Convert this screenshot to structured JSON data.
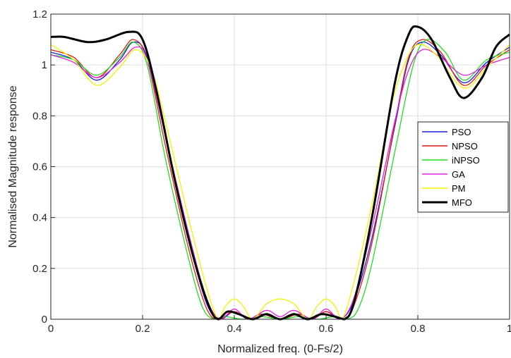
{
  "chart_data": {
    "type": "line",
    "title": "",
    "xlabel": "Normalized freq. (0-Fs/2)",
    "ylabel": "Normalised Magnitude response",
    "xlim": [
      0,
      1
    ],
    "ylim": [
      0,
      1.2
    ],
    "x_ticks": [
      0,
      0.2,
      0.4,
      0.6,
      0.8,
      1
    ],
    "x_tick_labels": [
      "0",
      "0.2",
      "0.4",
      "0.6",
      "0.8",
      "1"
    ],
    "y_ticks": [
      0,
      0.2,
      0.4,
      0.6,
      0.8,
      1,
      1.2
    ],
    "y_tick_labels": [
      "0",
      "0.2",
      "0.4",
      "0.6",
      "0.8",
      "1",
      "1.2"
    ],
    "grid": true,
    "legend_position": "right",
    "series": [
      {
        "name": "PSO",
        "color": "#1f1fdd",
        "points": [
          [
            0,
            1.05
          ],
          [
            0.05,
            1.02
          ],
          [
            0.1,
            0.94
          ],
          [
            0.15,
            1.02
          ],
          [
            0.18,
            1.09
          ],
          [
            0.21,
            1.03
          ],
          [
            0.25,
            0.72
          ],
          [
            0.3,
            0.32
          ],
          [
            0.34,
            0.06
          ],
          [
            0.37,
            0
          ],
          [
            0.4,
            0.03
          ],
          [
            0.43,
            0
          ],
          [
            0.46,
            0.02
          ],
          [
            0.5,
            0
          ],
          [
            0.54,
            0.02
          ],
          [
            0.57,
            0
          ],
          [
            0.6,
            0.03
          ],
          [
            0.63,
            0
          ],
          [
            0.66,
            0.07
          ],
          [
            0.7,
            0.32
          ],
          [
            0.75,
            0.76
          ],
          [
            0.78,
            1.02
          ],
          [
            0.81,
            1.09
          ],
          [
            0.85,
            1.04
          ],
          [
            0.9,
            0.93
          ],
          [
            0.95,
            1.01
          ],
          [
            1.0,
            1.07
          ]
        ]
      },
      {
        "name": "NPSO",
        "color": "#e31a1c",
        "points": [
          [
            0,
            1.06
          ],
          [
            0.05,
            1.03
          ],
          [
            0.1,
            0.95
          ],
          [
            0.15,
            1.04
          ],
          [
            0.18,
            1.1
          ],
          [
            0.21,
            1.02
          ],
          [
            0.25,
            0.68
          ],
          [
            0.3,
            0.28
          ],
          [
            0.34,
            0.04
          ],
          [
            0.365,
            0
          ],
          [
            0.4,
            0.03
          ],
          [
            0.43,
            0
          ],
          [
            0.46,
            0.02
          ],
          [
            0.5,
            0
          ],
          [
            0.54,
            0.02
          ],
          [
            0.57,
            0
          ],
          [
            0.6,
            0.03
          ],
          [
            0.635,
            0
          ],
          [
            0.66,
            0.05
          ],
          [
            0.7,
            0.3
          ],
          [
            0.75,
            0.77
          ],
          [
            0.78,
            1.03
          ],
          [
            0.81,
            1.1
          ],
          [
            0.85,
            1.05
          ],
          [
            0.9,
            0.92
          ],
          [
            0.95,
            1.0
          ],
          [
            1.0,
            1.06
          ]
        ]
      },
      {
        "name": "iNPSO",
        "color": "#22dd22",
        "points": [
          [
            0,
            1.04
          ],
          [
            0.05,
            1.02
          ],
          [
            0.1,
            0.96
          ],
          [
            0.15,
            1.03
          ],
          [
            0.18,
            1.09
          ],
          [
            0.21,
            1.0
          ],
          [
            0.25,
            0.63
          ],
          [
            0.3,
            0.24
          ],
          [
            0.33,
            0.05
          ],
          [
            0.355,
            0
          ],
          [
            0.38,
            0.01
          ],
          [
            0.42,
            0
          ],
          [
            0.46,
            0.01
          ],
          [
            0.5,
            0
          ],
          [
            0.54,
            0.01
          ],
          [
            0.58,
            0
          ],
          [
            0.62,
            0.01
          ],
          [
            0.645,
            0
          ],
          [
            0.67,
            0.04
          ],
          [
            0.7,
            0.22
          ],
          [
            0.75,
            0.66
          ],
          [
            0.79,
            1.0
          ],
          [
            0.82,
            1.1
          ],
          [
            0.86,
            1.05
          ],
          [
            0.9,
            0.94
          ],
          [
            0.95,
            1.02
          ],
          [
            1.0,
            1.05
          ]
        ]
      },
      {
        "name": "GA",
        "color": "#dd22dd",
        "points": [
          [
            0,
            1.04
          ],
          [
            0.05,
            1.01
          ],
          [
            0.1,
            0.95
          ],
          [
            0.15,
            1.01
          ],
          [
            0.185,
            1.07
          ],
          [
            0.21,
            1.02
          ],
          [
            0.25,
            0.72
          ],
          [
            0.3,
            0.34
          ],
          [
            0.34,
            0.08
          ],
          [
            0.37,
            0
          ],
          [
            0.4,
            0.04
          ],
          [
            0.43,
            0
          ],
          [
            0.47,
            0.035
          ],
          [
            0.5,
            0.01
          ],
          [
            0.53,
            0.035
          ],
          [
            0.57,
            0
          ],
          [
            0.6,
            0.04
          ],
          [
            0.63,
            0
          ],
          [
            0.66,
            0.08
          ],
          [
            0.7,
            0.36
          ],
          [
            0.75,
            0.78
          ],
          [
            0.78,
            0.98
          ],
          [
            0.81,
            1.06
          ],
          [
            0.85,
            1.03
          ],
          [
            0.9,
            0.96
          ],
          [
            0.95,
            1.0
          ],
          [
            1.0,
            1.03
          ]
        ]
      },
      {
        "name": "PM",
        "color": "#f2f200",
        "points": [
          [
            0,
            1.08
          ],
          [
            0.05,
            1.02
          ],
          [
            0.1,
            0.92
          ],
          [
            0.15,
            0.99
          ],
          [
            0.185,
            1.06
          ],
          [
            0.22,
            0.98
          ],
          [
            0.26,
            0.7
          ],
          [
            0.3,
            0.4
          ],
          [
            0.34,
            0.12
          ],
          [
            0.365,
            0
          ],
          [
            0.38,
            0.05
          ],
          [
            0.4,
            0.08
          ],
          [
            0.42,
            0.05
          ],
          [
            0.44,
            0
          ],
          [
            0.47,
            0.06
          ],
          [
            0.5,
            0.08
          ],
          [
            0.53,
            0.06
          ],
          [
            0.56,
            0
          ],
          [
            0.58,
            0.05
          ],
          [
            0.6,
            0.08
          ],
          [
            0.62,
            0.05
          ],
          [
            0.635,
            0
          ],
          [
            0.66,
            0.14
          ],
          [
            0.7,
            0.45
          ],
          [
            0.74,
            0.82
          ],
          [
            0.77,
            1.0
          ],
          [
            0.8,
            1.08
          ],
          [
            0.84,
            1.04
          ],
          [
            0.9,
            0.91
          ],
          [
            0.95,
            0.99
          ],
          [
            1.0,
            1.08
          ]
        ]
      },
      {
        "name": "MFO",
        "color": "#000000",
        "points": [
          [
            0,
            1.11
          ],
          [
            0.03,
            1.11
          ],
          [
            0.08,
            1.09
          ],
          [
            0.12,
            1.1
          ],
          [
            0.17,
            1.13
          ],
          [
            0.2,
            1.1
          ],
          [
            0.23,
            0.9
          ],
          [
            0.27,
            0.55
          ],
          [
            0.31,
            0.25
          ],
          [
            0.345,
            0.05
          ],
          [
            0.365,
            0
          ],
          [
            0.385,
            0.03
          ],
          [
            0.41,
            0.02
          ],
          [
            0.44,
            0
          ],
          [
            0.47,
            0.02
          ],
          [
            0.5,
            0
          ],
          [
            0.53,
            0.02
          ],
          [
            0.56,
            0
          ],
          [
            0.59,
            0.02
          ],
          [
            0.62,
            0.01
          ],
          [
            0.64,
            0
          ],
          [
            0.66,
            0.06
          ],
          [
            0.7,
            0.4
          ],
          [
            0.75,
            0.93
          ],
          [
            0.78,
            1.12
          ],
          [
            0.8,
            1.15
          ],
          [
            0.83,
            1.1
          ],
          [
            0.87,
            0.95
          ],
          [
            0.9,
            0.87
          ],
          [
            0.94,
            0.95
          ],
          [
            0.97,
            1.07
          ],
          [
            1.0,
            1.12
          ]
        ]
      }
    ]
  }
}
